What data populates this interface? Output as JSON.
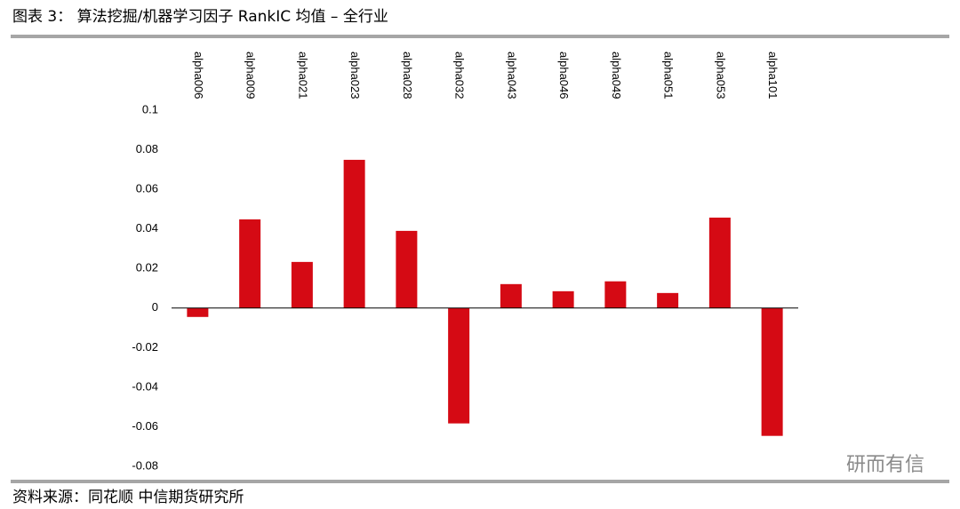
{
  "chart_data": {
    "type": "bar",
    "title": "图表 3：  算法挖掘/机器学习因子 RankIC 均值 – 全行业",
    "source": "资料来源：同花顺   中信期货研究所",
    "watermark": "研而有信",
    "categories": [
      "alpha006",
      "alpha009",
      "alpha021",
      "alpha023",
      "alpha028",
      "alpha032",
      "alpha043",
      "alpha046",
      "alpha049",
      "alpha051",
      "alpha053",
      "alpha101"
    ],
    "values": [
      -0.0045,
      0.0448,
      0.0233,
      0.0749,
      0.039,
      -0.0583,
      0.0121,
      0.0085,
      0.0135,
      0.0076,
      0.0457,
      -0.0646
    ],
    "color": "#d50a14",
    "ylim": [
      -0.08,
      0.1
    ],
    "yticks": [
      0.1,
      0.08,
      0.06,
      0.04,
      0.02,
      0,
      -0.02,
      -0.04,
      -0.06,
      -0.08
    ],
    "grid": false
  }
}
